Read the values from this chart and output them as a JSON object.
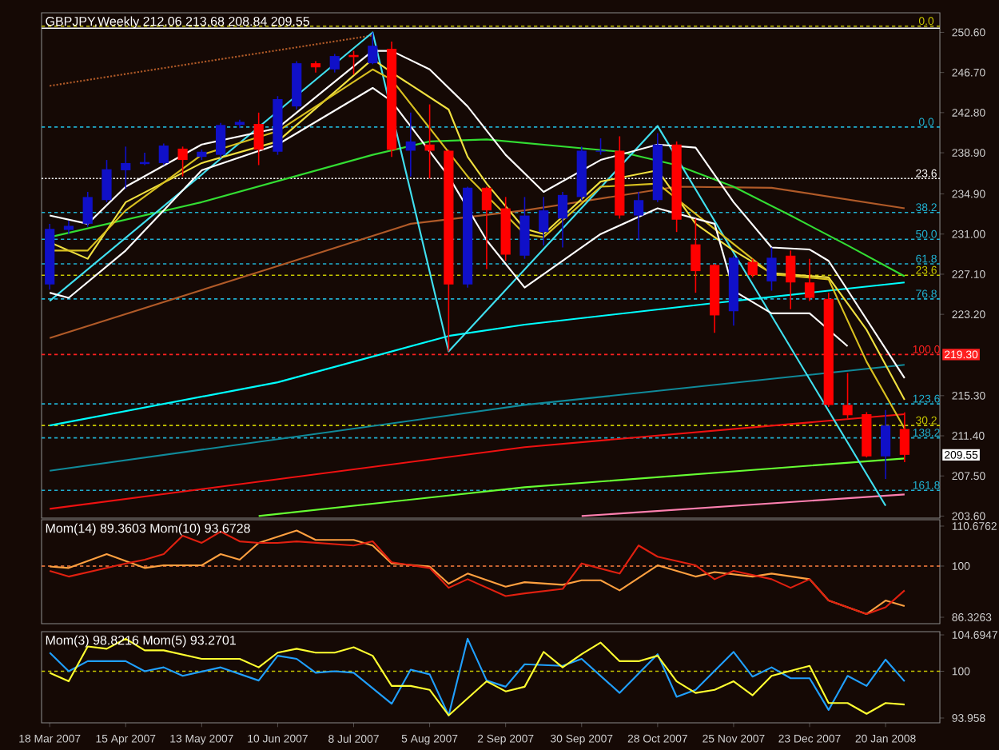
{
  "chart_data": [
    {
      "type": "candlestick",
      "title": "GBPJPY,Weekly  212.06 213.68 208.84 209.55",
      "x": [
        "2007-03-18",
        "2007-03-25",
        "2007-04-01",
        "2007-04-08",
        "2007-04-15",
        "2007-04-22",
        "2007-04-29",
        "2007-05-06",
        "2007-05-13",
        "2007-05-20",
        "2007-05-27",
        "2007-06-03",
        "2007-06-10",
        "2007-06-17",
        "2007-06-24",
        "2007-07-01",
        "2007-07-08",
        "2007-07-15",
        "2007-07-22",
        "2007-07-29",
        "2007-08-05",
        "2007-08-12",
        "2007-08-19",
        "2007-08-26",
        "2007-09-02",
        "2007-09-09",
        "2007-09-16",
        "2007-09-23",
        "2007-09-30",
        "2007-10-07",
        "2007-10-14",
        "2007-10-21",
        "2007-10-28",
        "2007-11-04",
        "2007-11-11",
        "2007-11-18",
        "2007-11-25",
        "2007-12-02",
        "2007-12-09",
        "2007-12-16",
        "2007-12-23",
        "2007-12-30",
        "2008-01-06",
        "2008-01-13",
        "2008-01-20",
        "2008-01-27"
      ],
      "ohlc": [
        [
          226.1,
          232.0,
          225.6,
          231.5
        ],
        [
          231.4,
          232.3,
          231.0,
          231.8
        ],
        [
          232.0,
          235.1,
          231.7,
          234.6
        ],
        [
          234.3,
          238.2,
          234.1,
          237.3
        ],
        [
          237.2,
          239.5,
          235.4,
          237.9
        ],
        [
          237.8,
          238.9,
          237.7,
          238.0
        ],
        [
          237.9,
          239.8,
          237.7,
          239.6
        ],
        [
          239.3,
          239.5,
          236.6,
          238.2
        ],
        [
          238.5,
          239.2,
          238.2,
          239.0
        ],
        [
          238.7,
          241.8,
          238.4,
          241.6
        ],
        [
          241.6,
          242.1,
          241.3,
          241.9
        ],
        [
          241.7,
          242.8,
          237.7,
          239.2
        ],
        [
          239.0,
          244.4,
          238.7,
          244.1
        ],
        [
          243.4,
          247.8,
          243.1,
          247.6
        ],
        [
          247.6,
          247.8,
          246.7,
          247.2
        ],
        [
          247.0,
          248.5,
          246.7,
          248.3
        ],
        [
          248.4,
          248.8,
          246.5,
          248.2
        ],
        [
          247.6,
          250.6,
          247.5,
          249.3
        ],
        [
          249.0,
          249.7,
          238.5,
          239.2
        ],
        [
          239.1,
          242.8,
          236.6,
          240.0
        ],
        [
          239.7,
          243.6,
          236.4,
          239.1
        ],
        [
          239.1,
          239.2,
          219.6,
          226.1
        ],
        [
          226.1,
          235.6,
          225.8,
          235.5
        ],
        [
          235.5,
          235.6,
          227.6,
          233.3
        ],
        [
          233.5,
          234.6,
          228.4,
          229.0
        ],
        [
          228.9,
          234.6,
          228.6,
          232.8
        ],
        [
          231.2,
          234.6,
          229.9,
          233.3
        ],
        [
          232.5,
          235.1,
          229.7,
          234.8
        ],
        [
          234.6,
          239.5,
          234.3,
          239.1
        ],
        [
          239.0,
          240.3,
          238.7,
          239.1
        ],
        [
          239.1,
          240.5,
          232.5,
          232.8
        ],
        [
          232.8,
          235.1,
          230.4,
          234.3
        ],
        [
          234.3,
          240.8,
          234.1,
          239.7
        ],
        [
          239.7,
          240.0,
          231.2,
          232.4
        ],
        [
          230.0,
          232.5,
          225.3,
          227.4
        ],
        [
          228.0,
          228.1,
          221.4,
          223.1
        ],
        [
          223.5,
          228.9,
          222.1,
          228.7
        ],
        [
          228.3,
          228.6,
          226.8,
          227.0
        ],
        [
          226.4,
          229.7,
          225.5,
          228.7
        ],
        [
          228.9,
          229.4,
          223.7,
          226.3
        ],
        [
          226.3,
          228.6,
          224.5,
          224.8
        ],
        [
          224.7,
          225.3,
          214.2,
          214.4
        ],
        [
          214.4,
          217.5,
          213.1,
          213.4
        ],
        [
          213.5,
          213.7,
          209.3,
          209.4
        ],
        [
          209.4,
          213.9,
          207.2,
          212.4
        ],
        [
          212.06,
          213.68,
          208.84,
          209.55
        ]
      ],
      "colors": [
        "#1010c8",
        "#1010c8",
        "#1010c8",
        "#1010c8",
        "#1010c8",
        "#1010c8",
        "#1010c8",
        "#ff0000",
        "#1010c8",
        "#1010c8",
        "#1010c8",
        "#ff0000",
        "#1010c8",
        "#1010c8",
        "#ff0000",
        "#1010c8",
        "#ff0000",
        "#1010c8",
        "#ff0000",
        "#1010c8",
        "#ff0000",
        "#ff0000",
        "#1010c8",
        "#ff0000",
        "#ff0000",
        "#1010c8",
        "#1010c8",
        "#1010c8",
        "#1010c8",
        "#1010c8",
        "#ff0000",
        "#1010c8",
        "#1010c8",
        "#ff0000",
        "#ff0000",
        "#ff0000",
        "#1010c8",
        "#ff0000",
        "#1010c8",
        "#ff0000",
        "#ff0000",
        "#ff0000",
        "#ff0000",
        "#ff0000",
        "#1010c8",
        "#ff0000"
      ],
      "series": [
        {
          "type": "line",
          "color": "#b05a28",
          "line_style": "dotted",
          "x": [
            "2007-03-18",
            "2007-07-15"
          ],
          "values": [
            245.4,
            250.3
          ]
        },
        {
          "type": "line",
          "color": "#00ffff",
          "x": [
            "2007-03-18",
            "2007-06-10",
            "2007-08-12",
            "2007-09-09",
            "2007-11-18",
            "2008-01-27"
          ],
          "values": [
            212.4,
            216.6,
            221.1,
            222.2,
            224.3,
            226.3
          ]
        },
        {
          "type": "line",
          "color": "#108a9a",
          "x": [
            "2007-03-18",
            "2007-09-09",
            "2008-01-27"
          ],
          "values": [
            208.0,
            214.4,
            218.3
          ]
        },
        {
          "type": "line",
          "color": "#ee1111",
          "x": [
            "2007-03-18",
            "2007-09-09",
            "2008-01-27"
          ],
          "values": [
            204.3,
            210.3,
            213.5
          ]
        },
        {
          "type": "line",
          "color": "#66ff33",
          "x": [
            "2007-06-03",
            "2007-09-09",
            "2008-01-27"
          ],
          "values": [
            203.6,
            206.4,
            209.2
          ]
        },
        {
          "type": "line",
          "color": "#ff80b0",
          "x": [
            "2007-09-30",
            "2008-01-27"
          ],
          "values": [
            203.6,
            205.7
          ]
        },
        {
          "type": "line",
          "color": "#b05a28",
          "x": [
            "2007-03-18",
            "2007-06-10",
            "2007-07-29",
            "2007-09-09",
            "2007-11-04",
            "2007-12-09",
            "2008-01-27"
          ],
          "values": [
            220.9,
            227.9,
            232.0,
            233.3,
            235.6,
            235.5,
            233.5
          ]
        },
        {
          "type": "line",
          "color": "#33dd33",
          "x": [
            "2007-03-18",
            "2007-05-13",
            "2007-07-15",
            "2007-08-05",
            "2007-08-26",
            "2007-10-14",
            "2007-11-04",
            "2007-11-25",
            "2007-12-16",
            "2008-01-06",
            "2008-01-27"
          ],
          "values": [
            230.7,
            234.1,
            238.7,
            240.0,
            240.2,
            239.0,
            237.7,
            235.6,
            232.8,
            229.9,
            226.9
          ]
        },
        {
          "type": "line",
          "color": "#40e0f0",
          "x": [
            "2007-03-18",
            "2007-07-15",
            "2007-08-12",
            "2007-10-28",
            "2008-01-20"
          ],
          "values": [
            224.5,
            250.6,
            219.6,
            241.5,
            204.6
          ]
        },
        {
          "type": "line",
          "color": "#ffffff",
          "x": [
            "2007-03-18",
            "2007-04-01",
            "2007-04-15",
            "2007-05-13",
            "2007-06-10",
            "2007-07-15",
            "2007-07-22",
            "2007-08-05",
            "2007-08-19",
            "2007-09-02",
            "2007-09-16",
            "2007-10-07",
            "2007-10-28",
            "2007-11-11",
            "2007-11-25",
            "2007-12-09",
            "2007-12-23",
            "2007-12-30",
            "2008-01-27"
          ],
          "values": [
            232.8,
            232.0,
            235.6,
            239.7,
            241.3,
            248.8,
            248.8,
            247.0,
            243.4,
            238.7,
            235.1,
            238.2,
            239.7,
            239.4,
            234.1,
            229.7,
            229.5,
            228.4,
            217.0
          ]
        },
        {
          "type": "line",
          "color": "#f0e040",
          "x": [
            "2007-03-18",
            "2007-04-01",
            "2007-04-15",
            "2007-05-13",
            "2007-06-10",
            "2007-07-15",
            "2007-07-22",
            "2007-08-12",
            "2007-08-19",
            "2007-08-26",
            "2007-09-09",
            "2007-09-16",
            "2007-10-07",
            "2007-10-28",
            "2007-11-11",
            "2007-11-25",
            "2007-12-09",
            "2007-12-30",
            "2008-01-13",
            "2008-01-27"
          ],
          "values": [
            230.2,
            228.6,
            234.1,
            237.9,
            240.0,
            248.0,
            246.7,
            243.1,
            238.5,
            235.9,
            231.5,
            231.0,
            236.1,
            237.2,
            232.0,
            229.4,
            227.2,
            226.8,
            221.7,
            214.9
          ]
        },
        {
          "type": "line",
          "color": "#d8c020",
          "x": [
            "2007-03-18",
            "2007-04-01",
            "2007-04-15",
            "2007-05-13",
            "2007-06-10",
            "2007-07-15",
            "2007-07-22",
            "2007-08-19",
            "2007-09-09",
            "2007-09-16",
            "2007-10-07",
            "2007-10-28",
            "2007-11-18",
            "2007-12-09",
            "2007-12-30",
            "2008-01-13",
            "2008-01-27"
          ],
          "values": [
            229.4,
            229.4,
            233.3,
            238.7,
            241.0,
            247.0,
            246.0,
            236.6,
            231.0,
            230.7,
            235.6,
            235.9,
            231.5,
            227.1,
            226.6,
            218.6,
            212.1
          ]
        },
        {
          "type": "line",
          "color": "#ffffff",
          "x": [
            "2007-03-18",
            "2007-03-25",
            "2007-04-15",
            "2007-05-13",
            "2007-06-10",
            "2007-07-15",
            "2007-07-22",
            "2007-08-12",
            "2007-08-26",
            "2007-09-09",
            "2007-10-07",
            "2007-10-28",
            "2007-11-18",
            "2007-11-25",
            "2007-12-09",
            "2007-12-23",
            "2008-01-06"
          ],
          "values": [
            225.3,
            224.8,
            229.4,
            237.2,
            239.7,
            245.2,
            243.9,
            236.6,
            230.4,
            225.8,
            231.0,
            233.5,
            232.0,
            225.5,
            223.3,
            223.3,
            220.1
          ]
        }
      ],
      "xlim": [
        "2007-03-15",
        "2008-02-09"
      ],
      "ylim": [
        203.4,
        252.5
      ],
      "yticks": [
        {
          "value": 250.6,
          "label": "250.60"
        },
        {
          "value": 246.7,
          "label": "246.70"
        },
        {
          "value": 242.8,
          "label": "242.80"
        },
        {
          "value": 238.9,
          "label": "238.90"
        },
        {
          "value": 234.9,
          "label": "234.90"
        },
        {
          "value": 231.0,
          "label": "231.00"
        },
        {
          "value": 227.1,
          "label": "227.10"
        },
        {
          "value": 223.2,
          "label": "223.20"
        },
        {
          "value": 215.3,
          "label": "215.30"
        },
        {
          "value": 211.4,
          "label": "211.40"
        },
        {
          "value": 207.5,
          "label": "207.50"
        },
        {
          "value": 203.6,
          "label": "203.60"
        }
      ],
      "ref_lines": [
        {
          "axis": "y",
          "value": 251.0,
          "color": "#ffffff",
          "line_style": "solid"
        },
        {
          "axis": "y",
          "value": 251.2,
          "color": "#c8c800",
          "line_style": "dashed"
        },
        {
          "axis": "y",
          "value": 241.4,
          "color": "#20b0d0",
          "line_style": "dashed"
        },
        {
          "axis": "y",
          "value": 236.4,
          "color": "#ffffff",
          "line_style": "dotted"
        },
        {
          "axis": "y",
          "value": 233.1,
          "color": "#20b0d0",
          "line_style": "dashed"
        },
        {
          "axis": "y",
          "value": 230.5,
          "color": "#20b0d0",
          "line_style": "dashed"
        },
        {
          "axis": "y",
          "value": 228.1,
          "color": "#20b0d0",
          "line_style": "dashed"
        },
        {
          "axis": "y",
          "value": 227.0,
          "color": "#c8c800",
          "line_style": "dashed"
        },
        {
          "axis": "y",
          "value": 224.7,
          "color": "#20b0d0",
          "line_style": "dashed"
        },
        {
          "axis": "y",
          "value": 219.3,
          "label": "219.30",
          "color": "#ff2020",
          "line_style": "dashed"
        },
        {
          "axis": "y",
          "value": 214.5,
          "color": "#20b0d0",
          "line_style": "dashed"
        },
        {
          "axis": "y",
          "value": 212.4,
          "color": "#c8c800",
          "line_style": "dashed"
        },
        {
          "axis": "y",
          "value": 211.2,
          "color": "#20b0d0",
          "line_style": "dashed"
        },
        {
          "axis": "y",
          "value": 206.1,
          "color": "#20b0d0",
          "line_style": "dashed"
        }
      ],
      "annotations": [
        {
          "text": "0.0",
          "x": "2008-02-04",
          "y": 251.2
        },
        {
          "text": "0.0",
          "x": "2008-02-04",
          "y": 241.4
        },
        {
          "text": "23.6",
          "x": "2008-02-04",
          "y": 236.4
        },
        {
          "text": "38.2",
          "x": "2008-02-04",
          "y": 233.1
        },
        {
          "text": "50.0",
          "x": "2008-02-04",
          "y": 230.5
        },
        {
          "text": "61.8",
          "x": "2008-02-04",
          "y": 228.1
        },
        {
          "text": "23.6",
          "x": "2008-02-04",
          "y": 227.0
        },
        {
          "text": "76.8",
          "x": "2008-02-04",
          "y": 224.7
        },
        {
          "text": "100.0",
          "x": "2008-02-04",
          "y": 219.3
        },
        {
          "text": "123.6",
          "x": "2008-02-04",
          "y": 214.5
        },
        {
          "text": "30.2",
          "x": "2008-02-04",
          "y": 212.4
        },
        {
          "text": "138.2",
          "x": "2008-02-04",
          "y": 211.2
        },
        {
          "text": "161.8",
          "x": "2008-02-04",
          "y": 206.1
        },
        {
          "text": "209.55",
          "y": 209.55
        }
      ],
      "tick_labels": "y"
    },
    {
      "type": "line",
      "title": "Mom(14) 89.3603  Mom(10) 93.6728",
      "series": [
        {
          "color": "#ffa040",
          "x": [
            "2007-03-18",
            "2007-03-25",
            "2007-04-08",
            "2007-04-22",
            "2007-04-29",
            "2007-05-13",
            "2007-05-20",
            "2007-05-27",
            "2007-06-03",
            "2007-06-17",
            "2007-06-24",
            "2007-07-08",
            "2007-07-15",
            "2007-07-22",
            "2007-08-05",
            "2007-08-12",
            "2007-08-19",
            "2007-09-02",
            "2007-09-09",
            "2007-09-23",
            "2007-09-30",
            "2007-10-07",
            "2007-10-14",
            "2007-10-28",
            "2007-11-11",
            "2007-11-18",
            "2007-12-02",
            "2007-12-09",
            "2007-12-23",
            "2007-12-30",
            "2008-01-13",
            "2008-01-20",
            "2008-01-27"
          ],
          "values": [
            99.9,
            99.5,
            103.2,
            99.5,
            100.2,
            100.2,
            103.2,
            101.7,
            106.2,
            109.5,
            107.0,
            107.0,
            105.5,
            100.7,
            99.9,
            95.3,
            98.0,
            94.5,
            95.7,
            95.0,
            96.2,
            96.2,
            93.5,
            100.2,
            97.2,
            98.4,
            97.2,
            98.0,
            96.5,
            90.8,
            87.2,
            90.8,
            89.3
          ]
        },
        {
          "color": "#e02010",
          "x": [
            "2007-03-18",
            "2007-03-25",
            "2007-04-08",
            "2007-04-15",
            "2007-04-22",
            "2007-04-29",
            "2007-05-06",
            "2007-05-13",
            "2007-05-20",
            "2007-05-27",
            "2007-06-03",
            "2007-06-10",
            "2007-06-17",
            "2007-07-08",
            "2007-07-15",
            "2007-07-22",
            "2007-08-05",
            "2007-08-12",
            "2007-08-19",
            "2007-09-02",
            "2007-09-09",
            "2007-09-23",
            "2007-09-30",
            "2007-10-14",
            "2007-10-21",
            "2007-10-28",
            "2007-11-11",
            "2007-11-18",
            "2007-11-25",
            "2007-12-09",
            "2007-12-16",
            "2007-12-23",
            "2007-12-30",
            "2008-01-13",
            "2008-01-20",
            "2008-01-27"
          ],
          "values": [
            98.7,
            97.2,
            99.5,
            100.7,
            101.7,
            103.2,
            108.1,
            106.2,
            109.2,
            106.6,
            106.2,
            106.2,
            106.6,
            105.5,
            106.6,
            101.0,
            99.5,
            94.2,
            96.5,
            92.0,
            92.7,
            93.9,
            100.7,
            98.0,
            105.5,
            102.5,
            100.2,
            96.5,
            98.7,
            96.5,
            94.2,
            96.5,
            90.8,
            87.2,
            89.0,
            93.5
          ]
        }
      ],
      "xlim": [
        "2007-03-15",
        "2008-02-09"
      ],
      "ylim": [
        84.62,
        112.38
      ],
      "yticks": [
        86.3263,
        100,
        110.6762
      ],
      "ref_lines": [
        {
          "axis": "y",
          "value": 100,
          "color": "#ff8040",
          "line_style": "dashed"
        }
      ],
      "tick_labels": "y"
    },
    {
      "type": "line",
      "title": "Mom(3) 98.8216  Mom(5) 93.2701",
      "series": [
        {
          "color": "#20a0ff",
          "x": [
            "2007-03-18",
            "2007-03-25",
            "2007-04-01",
            "2007-04-15",
            "2007-04-22",
            "2007-04-29",
            "2007-05-06",
            "2007-05-20",
            "2007-06-03",
            "2007-06-10",
            "2007-06-17",
            "2007-06-24",
            "2007-07-01",
            "2007-07-08",
            "2007-07-22",
            "2007-07-29",
            "2007-08-05",
            "2007-08-12",
            "2007-08-19",
            "2007-08-26",
            "2007-09-02",
            "2007-09-09",
            "2007-09-23",
            "2007-09-30",
            "2007-10-14",
            "2007-10-28",
            "2007-11-04",
            "2007-11-11",
            "2007-11-25",
            "2007-12-02",
            "2007-12-09",
            "2007-12-16",
            "2007-12-23",
            "2007-12-30",
            "2008-01-06",
            "2008-01-13",
            "2008-01-20",
            "2008-01-27"
          ],
          "values": [
            102.4,
            100.0,
            101.3,
            101.3,
            100.0,
            100.5,
            99.4,
            100.5,
            98.8,
            102.0,
            101.6,
            99.8,
            100.0,
            99.8,
            95.8,
            100.2,
            99.6,
            94.3,
            104.2,
            98.8,
            98.0,
            100.9,
            100.7,
            101.6,
            97.2,
            102.2,
            96.7,
            97.6,
            102.5,
            99.3,
            100.5,
            99.1,
            99.1,
            95.0,
            99.4,
            98.1,
            101.5,
            98.7
          ]
        },
        {
          "color": "#ffff30",
          "x": [
            "2007-03-18",
            "2007-03-25",
            "2007-04-01",
            "2007-04-08",
            "2007-04-15",
            "2007-04-22",
            "2007-04-29",
            "2007-05-13",
            "2007-05-20",
            "2007-05-27",
            "2007-06-03",
            "2007-06-10",
            "2007-06-17",
            "2007-06-24",
            "2007-07-01",
            "2007-07-08",
            "2007-07-15",
            "2007-07-22",
            "2007-07-29",
            "2007-08-05",
            "2007-08-12",
            "2007-08-26",
            "2007-09-02",
            "2007-09-09",
            "2007-09-16",
            "2007-09-23",
            "2007-09-30",
            "2007-10-07",
            "2007-10-14",
            "2007-10-21",
            "2007-10-28",
            "2007-11-04",
            "2007-11-11",
            "2007-11-18",
            "2007-11-25",
            "2007-12-02",
            "2007-12-09",
            "2007-12-23",
            "2007-12-30",
            "2008-01-06",
            "2008-01-13",
            "2008-01-20",
            "2008-01-27"
          ],
          "values": [
            99.8,
            98.7,
            103.2,
            102.9,
            104.2,
            102.7,
            102.7,
            101.6,
            101.6,
            101.6,
            100.5,
            102.4,
            102.9,
            102.4,
            102.4,
            103.1,
            102.0,
            98.1,
            98.1,
            97.6,
            94.3,
            98.7,
            97.4,
            98.0,
            102.5,
            100.5,
            102.2,
            103.7,
            101.3,
            101.3,
            102.0,
            98.7,
            97.2,
            97.6,
            98.7,
            96.9,
            99.4,
            100.7,
            95.9,
            95.9,
            94.5,
            95.9,
            95.7
          ]
        }
      ],
      "xlim": [
        "2007-03-15",
        "2008-02-09"
      ],
      "ylim": [
        93.34,
        105.11
      ],
      "yticks": [
        93.958,
        100,
        104.6947
      ],
      "xticks": [
        {
          "value": "2007-03-18",
          "label": "18 Mar 2007"
        },
        {
          "value": "2007-04-15",
          "label": "15 Apr 2007"
        },
        {
          "value": "2007-05-13",
          "label": "13 May 2007"
        },
        {
          "value": "2007-06-10",
          "label": "10 Jun 2007"
        },
        {
          "value": "2007-07-08",
          "label": "8 Jul 2007"
        },
        {
          "value": "2007-08-05",
          "label": "5 Aug 2007"
        },
        {
          "value": "2007-09-02",
          "label": "2 Sep 2007"
        },
        {
          "value": "2007-09-30",
          "label": "30 Sep 2007"
        },
        {
          "value": "2007-10-28",
          "label": "28 Oct 2007"
        },
        {
          "value": "2007-11-25",
          "label": "25 Nov 2007"
        },
        {
          "value": "2007-12-23",
          "label": "23 Dec 2007"
        },
        {
          "value": "2008-01-20",
          "label": "20 Jan 2008"
        }
      ],
      "ref_lines": [
        {
          "axis": "y",
          "value": 100,
          "color": "#c8c800",
          "line_style": "dashed"
        }
      ]
    }
  ]
}
